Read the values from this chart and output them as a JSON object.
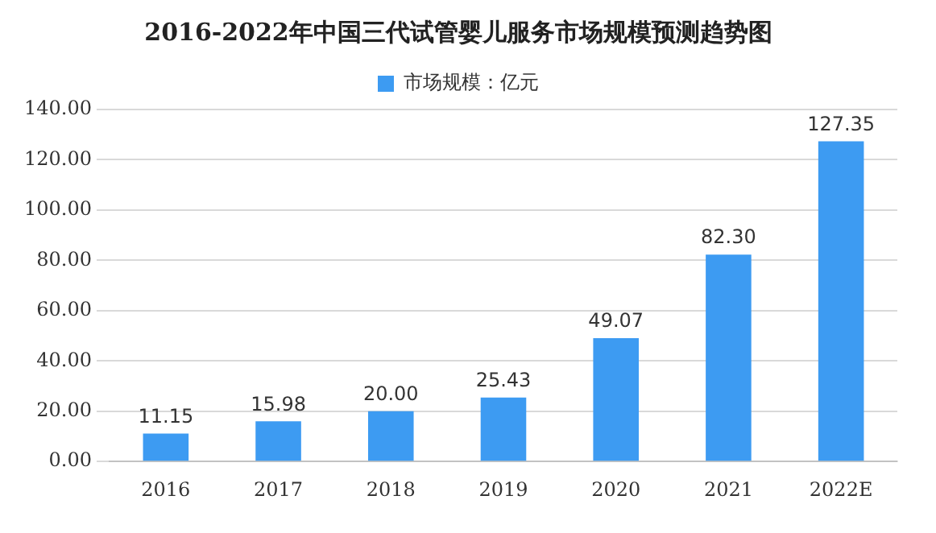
{
  "chart_data": {
    "type": "bar",
    "title": "2016-2022年中国三代试管婴儿服务市场规模预测趋势图",
    "categories": [
      "2016",
      "2017",
      "2018",
      "2019",
      "2020",
      "2021",
      "2022E"
    ],
    "series": [
      {
        "name": "市场规模：亿元",
        "color": "#3d9bf2",
        "values": [
          11.15,
          15.98,
          20.0,
          25.43,
          49.07,
          82.3,
          127.35
        ],
        "value_labels": [
          "11.15",
          "15.98",
          "20.00",
          "25.43",
          "49.07",
          "82.30",
          "127.35"
        ]
      }
    ],
    "ylim": [
      0,
      140
    ],
    "yticks": [
      {
        "value": 0,
        "label": "0.00"
      },
      {
        "value": 20,
        "label": "20.00"
      },
      {
        "value": 40,
        "label": "40.00"
      },
      {
        "value": 60,
        "label": "60.00"
      },
      {
        "value": 80,
        "label": "80.00"
      },
      {
        "value": 100,
        "label": "100.00"
      },
      {
        "value": 120,
        "label": "120.00"
      },
      {
        "value": 140,
        "label": "140.00"
      }
    ],
    "grid": "y",
    "legend": "top"
  }
}
